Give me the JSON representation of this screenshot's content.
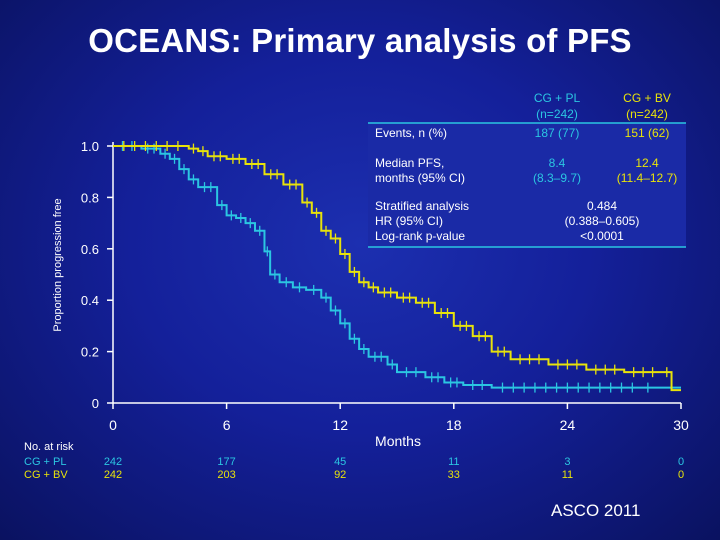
{
  "slide": {
    "title": "OCEANS: Primary analysis of PFS",
    "footer": "ASCO 2011"
  },
  "chart_data": {
    "type": "line",
    "title": "",
    "ylabel": "Proportion progression free",
    "xlabel": "Months",
    "x_ticks": [
      0,
      6,
      12,
      18,
      24,
      30
    ],
    "y_ticks": [
      {
        "value": 0,
        "label": "0"
      },
      {
        "value": 0.2,
        "label": "0.2"
      },
      {
        "value": 0.4,
        "label": "0.4"
      },
      {
        "value": 0.6,
        "label": "0.6"
      },
      {
        "value": 0.8,
        "label": "0.8"
      },
      {
        "value": 1.0,
        "label": "1.0"
      }
    ],
    "xlim": [
      0,
      30
    ],
    "ylim": [
      0,
      1
    ],
    "series": [
      {
        "name": "CG + PL",
        "color": "#2bc6e2",
        "points": [
          [
            0,
            1.0
          ],
          [
            1.5,
            0.99
          ],
          [
            2.5,
            0.97
          ],
          [
            3.0,
            0.95
          ],
          [
            3.5,
            0.91
          ],
          [
            4.0,
            0.87
          ],
          [
            4.5,
            0.84
          ],
          [
            5.5,
            0.77
          ],
          [
            6.0,
            0.73
          ],
          [
            6.5,
            0.72
          ],
          [
            7.0,
            0.7
          ],
          [
            7.5,
            0.67
          ],
          [
            8.0,
            0.59
          ],
          [
            8.3,
            0.5
          ],
          [
            8.8,
            0.47
          ],
          [
            9.5,
            0.45
          ],
          [
            10.2,
            0.44
          ],
          [
            11.0,
            0.41
          ],
          [
            11.5,
            0.36
          ],
          [
            12.0,
            0.31
          ],
          [
            12.5,
            0.25
          ],
          [
            13.0,
            0.21
          ],
          [
            13.5,
            0.18
          ],
          [
            14.5,
            0.15
          ],
          [
            15.0,
            0.12
          ],
          [
            16.5,
            0.1
          ],
          [
            17.5,
            0.08
          ],
          [
            18.5,
            0.07
          ],
          [
            20.0,
            0.06
          ],
          [
            28.0,
            0.06
          ],
          [
            28.5,
            0.06
          ],
          [
            30,
            0.06
          ]
        ]
      },
      {
        "name": "CG + BV",
        "color": "#e8e30a",
        "points": [
          [
            0,
            1.0
          ],
          [
            4.0,
            0.99
          ],
          [
            4.5,
            0.98
          ],
          [
            5.0,
            0.96
          ],
          [
            6.0,
            0.95
          ],
          [
            7.0,
            0.93
          ],
          [
            8.0,
            0.89
          ],
          [
            9.0,
            0.85
          ],
          [
            10.0,
            0.78
          ],
          [
            10.5,
            0.74
          ],
          [
            11.0,
            0.67
          ],
          [
            11.5,
            0.64
          ],
          [
            12.0,
            0.58
          ],
          [
            12.5,
            0.51
          ],
          [
            13.0,
            0.47
          ],
          [
            13.5,
            0.45
          ],
          [
            14.0,
            0.43
          ],
          [
            15.0,
            0.41
          ],
          [
            16.0,
            0.39
          ],
          [
            17.0,
            0.35
          ],
          [
            18.0,
            0.3
          ],
          [
            19.0,
            0.26
          ],
          [
            20.0,
            0.2
          ],
          [
            21.0,
            0.17
          ],
          [
            23.0,
            0.15
          ],
          [
            25.0,
            0.13
          ],
          [
            27.0,
            0.12
          ],
          [
            29.0,
            0.12
          ],
          [
            29.5,
            0.05
          ],
          [
            30,
            0.05
          ]
        ]
      }
    ],
    "at_risk": {
      "header": "No. at risk",
      "rows": [
        {
          "label": "CG + PL",
          "color": "#2bc6e2",
          "values": [
            "242",
            "177",
            "45",
            "11",
            "3",
            "0"
          ]
        },
        {
          "label": "CG + BV",
          "color": "#e8e30a",
          "values": [
            "242",
            "203",
            "92",
            "33",
            "11",
            "0"
          ]
        }
      ]
    },
    "summary_table": {
      "columns": [
        {
          "line1": "CG + PL",
          "line2": "(n=242)",
          "color": "#2bc6e2"
        },
        {
          "line1": "CG + BV",
          "line2": "(n=242)",
          "color": "#e8e30a"
        }
      ],
      "rows": [
        {
          "label": [
            "Events, n (%)"
          ],
          "values": [
            [
              "187 (77)"
            ],
            [
              "151 (62)"
            ]
          ]
        },
        {
          "label": [
            "Median PFS,",
            "months (95% CI)"
          ],
          "values": [
            [
              "8.4",
              "(8.3–9.7)"
            ],
            [
              "12.4",
              "(11.4–12.7)"
            ]
          ]
        },
        {
          "label": [
            "Stratified analysis",
            "HR (95% CI)",
            "Log-rank p-value"
          ],
          "combined": [
            "0.484",
            "(0.388–0.605)",
            "<0.0001"
          ]
        }
      ]
    }
  }
}
